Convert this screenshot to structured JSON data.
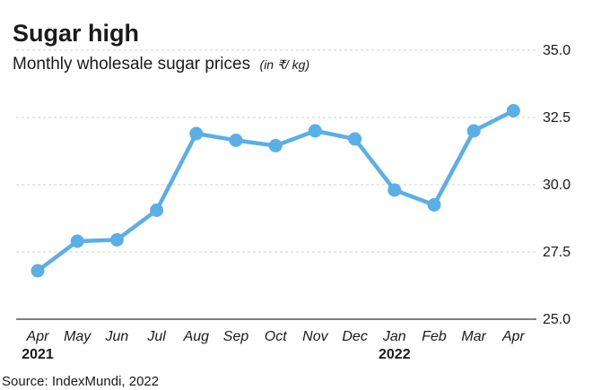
{
  "colors": {
    "series": "#5aafe6",
    "text": "#1a1a1a",
    "grid": "#cfcfcf"
  },
  "chart_data": {
    "type": "line",
    "title": "Sugar high",
    "subtitle": "Monthly wholesale sugar prices",
    "unit": "(in ₹/ kg)",
    "source": "Source: IndexMundi, 2022",
    "categories": [
      "Apr",
      "May",
      "Jun",
      "Jul",
      "Aug",
      "Sep",
      "Oct",
      "Nov",
      "Dec",
      "Jan",
      "Feb",
      "Mar",
      "Apr"
    ],
    "year_labels": [
      {
        "label": "2021",
        "category_index": 0
      },
      {
        "label": "2022",
        "category_index": 9
      }
    ],
    "series": [
      {
        "values": [
          26.8,
          27.9,
          27.95,
          29.05,
          31.9,
          31.65,
          31.45,
          32.0,
          31.7,
          29.8,
          29.25,
          32.0,
          32.75
        ]
      }
    ],
    "ylim": [
      25.0,
      35.0
    ],
    "yticks": [
      "25.0",
      "27.5",
      "30.0",
      "32.5",
      "35.0"
    ],
    "xlabel": "",
    "ylabel": "",
    "grid": true,
    "y_axis_side": "right"
  }
}
